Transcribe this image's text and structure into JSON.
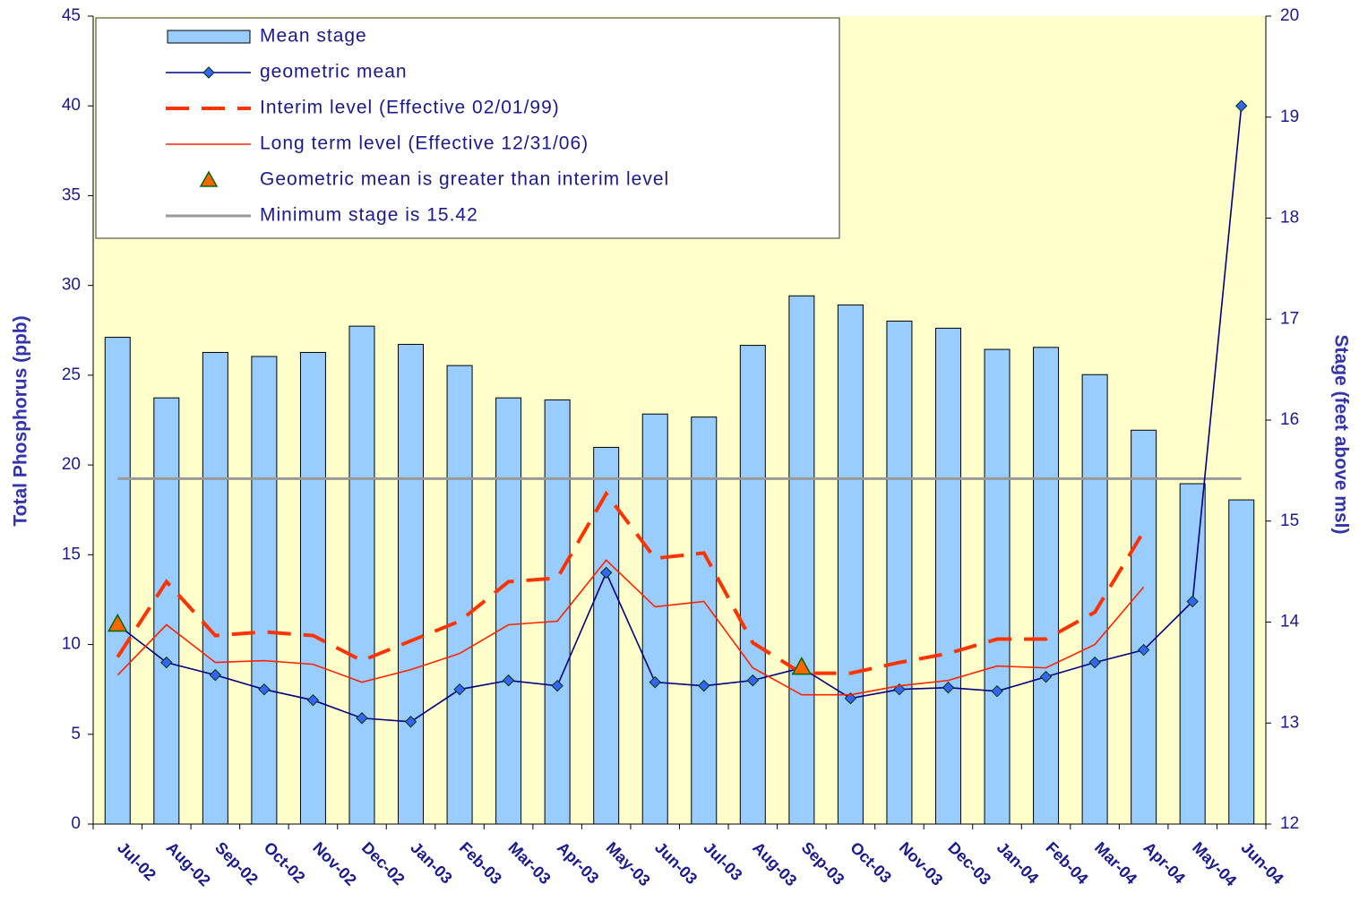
{
  "chart_data": {
    "type": "bar",
    "ylabel": "Total Phosphorus (ppb)",
    "y2label": "Stage (feet above msl)",
    "categories": [
      "Jul-02",
      "Aug-02",
      "Sep-02",
      "Oct-02",
      "Nov-02",
      "Dec-02",
      "Jan-03",
      "Feb-03",
      "Mar-03",
      "Apr-03",
      "May-03",
      "Jun-03",
      "Jul-03",
      "Aug-03",
      "Sep-03",
      "Oct-03",
      "Nov-03",
      "Dec-03",
      "Jan-04",
      "Feb-04",
      "Mar-04",
      "Apr-04",
      "May-04",
      "Jun-04"
    ],
    "ylim": [
      0,
      45
    ],
    "yticks": [
      0,
      5,
      10,
      15,
      20,
      25,
      30,
      35,
      40,
      45
    ],
    "y2lim": [
      12,
      20
    ],
    "y2ticks": [
      12,
      13,
      14,
      15,
      16,
      17,
      18,
      19,
      20
    ],
    "background": "#ffffcc",
    "series": [
      {
        "name": "Mean stage",
        "type": "bar",
        "axis": "y2",
        "color": "#99ccff",
        "values": [
          16.82,
          16.22,
          16.67,
          16.63,
          16.67,
          16.93,
          16.75,
          16.54,
          16.22,
          16.2,
          15.73,
          16.06,
          16.03,
          16.74,
          17.23,
          17.14,
          16.98,
          16.91,
          16.7,
          16.72,
          16.45,
          15.9,
          15.37,
          15.21
        ]
      },
      {
        "name": "geometric mean",
        "type": "line",
        "marker": "diamond",
        "color": "#000080",
        "marker_color": "#3366ff",
        "values": [
          11.1,
          9.0,
          8.3,
          7.5,
          6.9,
          5.9,
          5.7,
          7.5,
          8.0,
          7.7,
          14.0,
          7.9,
          7.7,
          8.0,
          8.7,
          7.0,
          7.5,
          7.6,
          7.4,
          8.2,
          9.0,
          9.7,
          12.4,
          40.0
        ]
      },
      {
        "name": "Interim level (Effective 02/01/99)",
        "type": "line",
        "dash": true,
        "color": "#ff3300",
        "values": [
          9.3,
          13.5,
          10.5,
          10.7,
          10.5,
          9.1,
          10.2,
          11.3,
          13.5,
          13.7,
          18.4,
          14.8,
          15.1,
          10.1,
          8.4,
          8.4,
          9.0,
          9.5,
          10.3,
          10.3,
          11.8,
          16.3,
          null,
          null
        ]
      },
      {
        "name": "Long term level (Effective 12/31/06)",
        "type": "line",
        "color": "#ff2200",
        "values": [
          8.3,
          11.1,
          9.0,
          9.1,
          8.9,
          7.9,
          8.6,
          9.5,
          11.1,
          11.3,
          14.7,
          12.1,
          12.4,
          8.7,
          7.2,
          7.2,
          7.7,
          8.0,
          8.8,
          8.7,
          10.0,
          13.2,
          null,
          null
        ]
      },
      {
        "name": "Geometric mean is greater than interim level",
        "type": "scatter",
        "marker": "triangle",
        "color": "#ff6600",
        "values": [
          11.1,
          null,
          null,
          null,
          null,
          null,
          null,
          null,
          null,
          null,
          null,
          null,
          null,
          null,
          8.7,
          null,
          null,
          null,
          null,
          null,
          null,
          null,
          null,
          null
        ]
      },
      {
        "name": "Minimum stage is 15.42",
        "type": "hline",
        "axis": "y2",
        "color": "#999999",
        "value": 15.42
      }
    ]
  }
}
